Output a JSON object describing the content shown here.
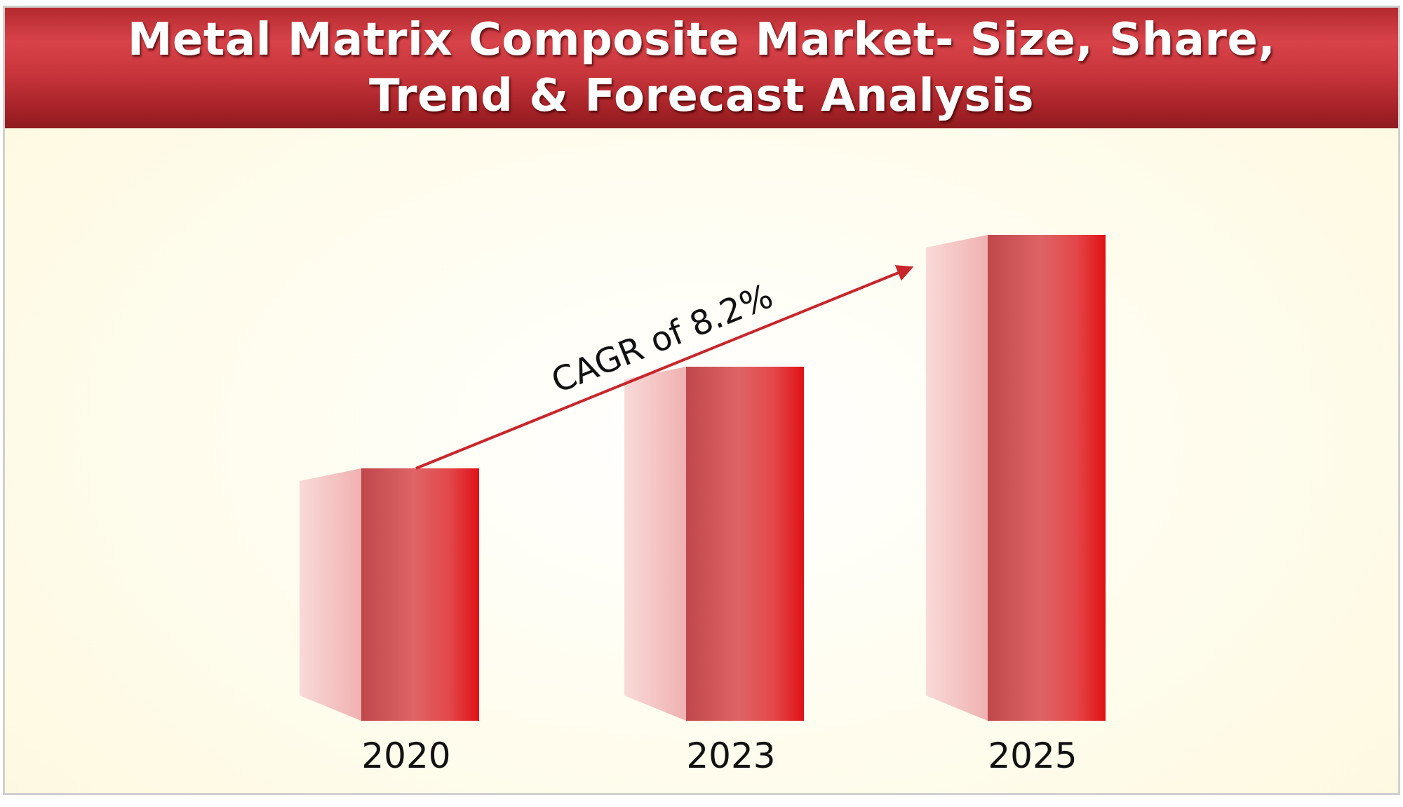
{
  "header": {
    "title_line1": "Metal Matrix Composite Market- Size, Share,",
    "title_line2": "Trend & Forecast Analysis"
  },
  "chart_data": {
    "type": "bar",
    "categories": [
      "2020",
      "2023",
      "2025"
    ],
    "values": [
      360,
      505,
      693
    ],
    "value_axis_shown": false,
    "annotation": "CAGR of 8.2%",
    "colors": {
      "bar_light": "#e23b3e",
      "bar_dark": "#c94f53",
      "bar_side": "#f4c6c6",
      "arrow": "#c8262b"
    }
  }
}
